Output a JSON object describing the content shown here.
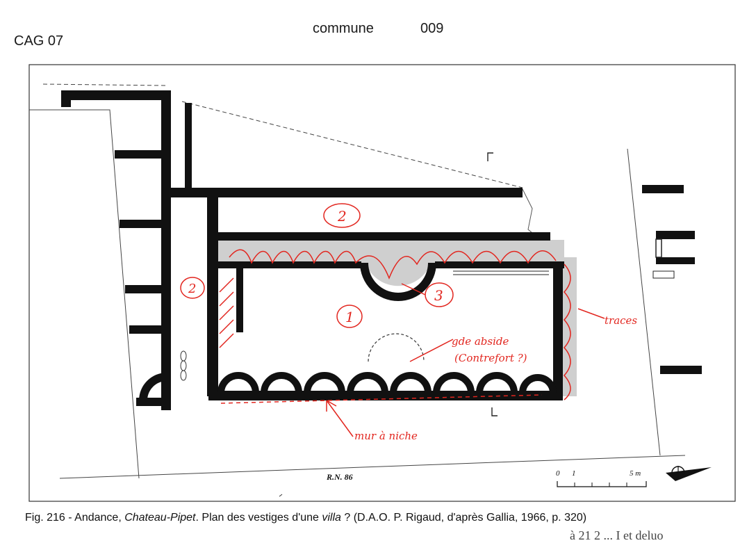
{
  "header": {
    "left": "CAG 07",
    "commune_label": "commune",
    "commune_number": "009"
  },
  "plan": {
    "road_label": "R.N. 86",
    "scale": {
      "tick_0": "0",
      "tick_1": "1",
      "tick_5": "5 m"
    },
    "annotations": {
      "room_2_top": "2",
      "room_2_left": "2",
      "room_1": "1",
      "room_3": "3",
      "note_apse": "gde abside",
      "note_contrefort": "(Contrefort ?)",
      "note_right": "traces",
      "note_bottom": "mur à niche"
    }
  },
  "caption": {
    "prefix": "Fig. 216 - Andance, ",
    "site": "Chateau-Pipet",
    "mid": ". Plan des vestiges d'une ",
    "villa": "villa",
    "suffix": " ? (D.A.O. P. Rigaud, d'après Gallia, 1966, p. 320)"
  },
  "cut_text": "à 21 2 ... I et deluo"
}
